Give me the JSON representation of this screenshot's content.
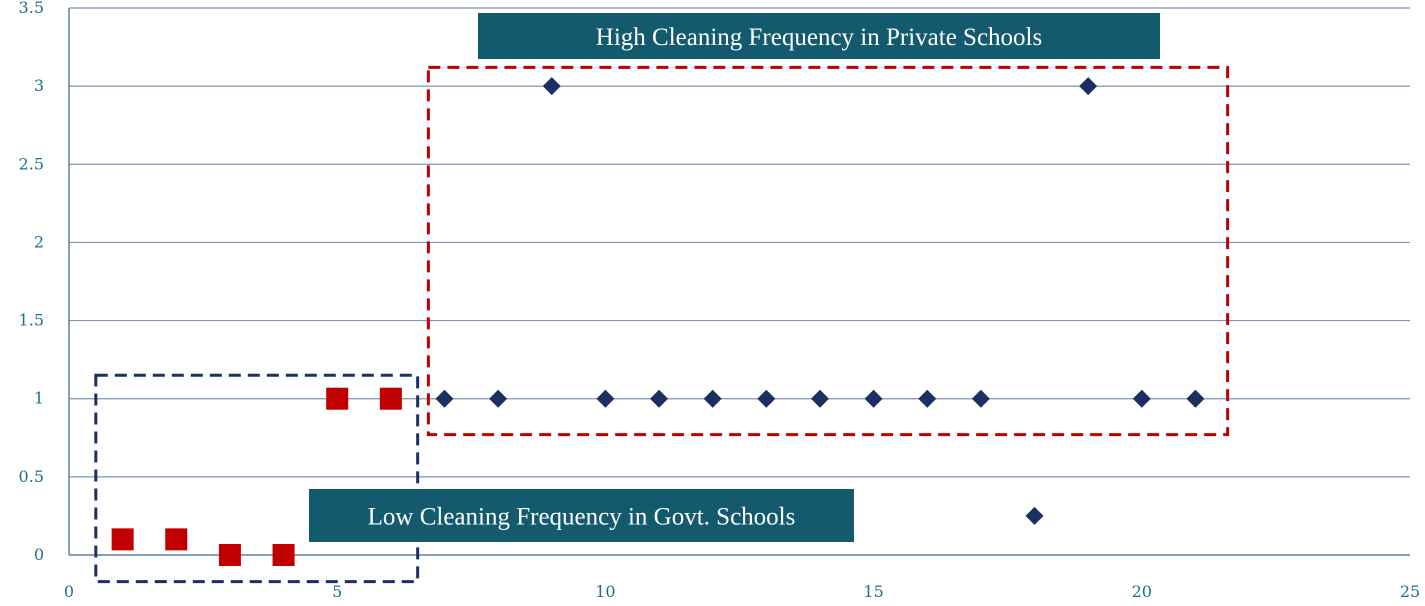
{
  "chart_data": {
    "type": "scatter",
    "title": "",
    "xlabel": "",
    "ylabel": "",
    "xlim": [
      0,
      25
    ],
    "ylim": [
      0,
      3.5
    ],
    "x_ticks": [
      "0",
      "5",
      "10",
      "15",
      "20",
      "25"
    ],
    "y_ticks": [
      "0",
      "0.5",
      "1",
      "1.5",
      "2",
      "2.5",
      "3",
      "3.5"
    ],
    "grid": "horizontal",
    "series": [
      {
        "marker": "square",
        "color": "#c00000",
        "points": [
          {
            "x": 1,
            "y": 0.1
          },
          {
            "x": 2,
            "y": 0.1
          },
          {
            "x": 3,
            "y": 0
          },
          {
            "x": 4,
            "y": 0
          },
          {
            "x": 5,
            "y": 1
          },
          {
            "x": 6,
            "y": 1
          }
        ]
      },
      {
        "marker": "diamond",
        "color": "#1b2f63",
        "points": [
          {
            "x": 7,
            "y": 1
          },
          {
            "x": 8,
            "y": 1
          },
          {
            "x": 9,
            "y": 3
          },
          {
            "x": 10,
            "y": 1
          },
          {
            "x": 11,
            "y": 1
          },
          {
            "x": 12,
            "y": 1
          },
          {
            "x": 13,
            "y": 1
          },
          {
            "x": 14,
            "y": 1
          },
          {
            "x": 15,
            "y": 1
          },
          {
            "x": 16,
            "y": 1
          },
          {
            "x": 17,
            "y": 1
          },
          {
            "x": 18,
            "y": 0.25
          },
          {
            "x": 19,
            "y": 3
          },
          {
            "x": 20,
            "y": 1
          },
          {
            "x": 21,
            "y": 1
          }
        ]
      }
    ],
    "annotations": [
      {
        "id": "private",
        "text": "High Cleaning Frequency in Private Schools",
        "box_color": "#145a6e",
        "region": {
          "x0": 6.7,
          "x1": 21.6,
          "y0": 0.77,
          "y1": 3.12
        },
        "region_color": "#c00000"
      },
      {
        "id": "govt",
        "text": "Low Cleaning Frequency in Govt. Schools",
        "box_color": "#145a6e",
        "region": {
          "x0": 0.5,
          "x1": 6.5,
          "y0": -0.17,
          "y1": 1.15
        },
        "region_color": "#1b2f63"
      }
    ]
  }
}
